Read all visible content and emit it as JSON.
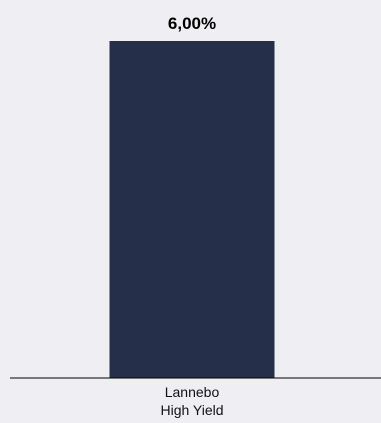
{
  "chart_data": {
    "type": "bar",
    "categories": [
      [
        "Lannebo",
        "High Yield"
      ]
    ],
    "values": [
      6.0
    ],
    "data_labels": [
      "6,00%"
    ],
    "ylim": [
      0,
      6.0
    ],
    "grid": false,
    "legend": "none",
    "colors": {
      "bar": "#262f49",
      "background": "#efeff3",
      "axis": "#000000"
    }
  }
}
